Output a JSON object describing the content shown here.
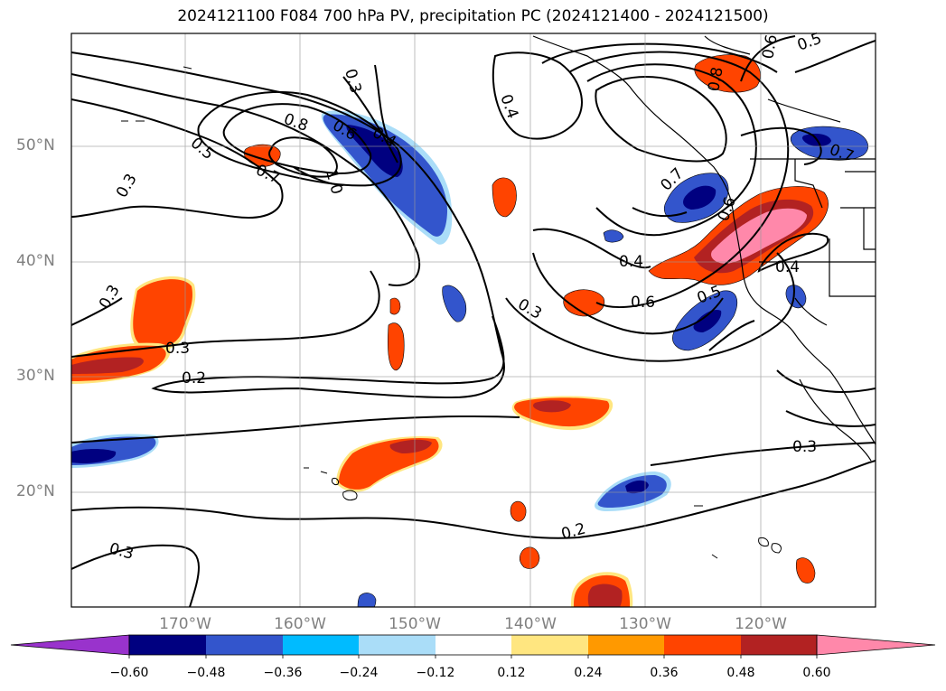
{
  "title": "2024121100 F084 700 hPa PV, precipitation PC (2024121400 - 2024121500)",
  "latitude_labels": [
    "50°N",
    "40°N",
    "30°N",
    "20°N"
  ],
  "longitude_labels": [
    "170°W",
    "160°W",
    "150°W",
    "140°W",
    "130°W",
    "120°W"
  ],
  "contour_labels": [
    "0.3",
    "0.5",
    "0.8",
    "0.7",
    "1.0",
    "0.6",
    "0.4",
    "0.4",
    "0.3",
    "0.6",
    "0.5",
    "0.7",
    "0.8",
    "0.7",
    "0.6",
    "0.4",
    "0.4",
    "0.6",
    "0.5",
    "0.3",
    "0.3",
    "0.2",
    "0.3",
    "0.2",
    "0.3",
    "0.3"
  ],
  "colorbar": {
    "ticks": [
      "−0.60",
      "−0.48",
      "−0.36",
      "−0.24",
      "−0.12",
      "0.12",
      "0.24",
      "0.36",
      "0.48",
      "0.60"
    ],
    "colors": [
      "#9933cc",
      "#000080",
      "#3355cc",
      "#00bbff",
      "#aaddf8",
      "#ffffff",
      "#ffe680",
      "#ff9900",
      "#ff4400",
      "#b22222",
      "#ff88aa"
    ]
  },
  "palette": {
    "deep_red": "#b22222",
    "red": "#ff4400",
    "orange": "#ff9900",
    "yellow": "#ffe680",
    "pink": "#ff88aa",
    "navy": "#000080",
    "blue": "#3355cc",
    "cyan": "#00bbff",
    "light_blue": "#aaddf8"
  }
}
